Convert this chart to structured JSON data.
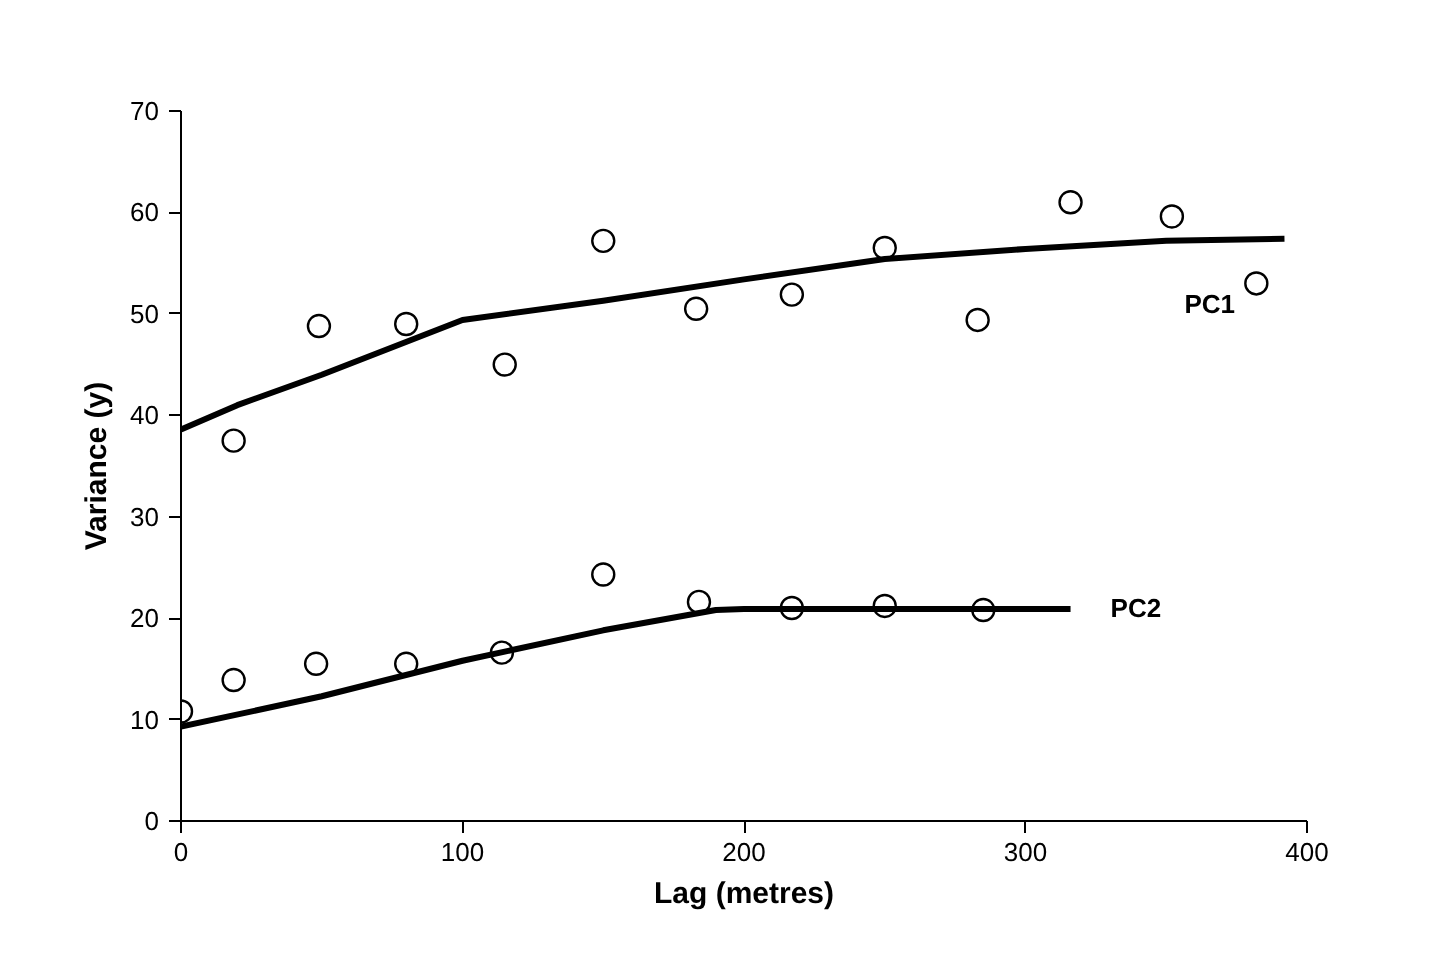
{
  "chart_data": {
    "type": "scatter",
    "xlabel": "Lag (metres)",
    "ylabel": "Variance (y)",
    "xlim": [
      0,
      400
    ],
    "xticks": [
      0,
      100,
      200,
      300,
      400
    ],
    "ylim": [
      0,
      70
    ],
    "yticks": [
      0,
      10,
      20,
      30,
      40,
      50,
      60,
      70
    ],
    "grid": false,
    "series": [
      {
        "marker": "circle",
        "color": "#000000",
        "x": [
          18.7,
          49,
          80,
          115,
          150,
          183,
          217,
          250,
          283,
          316,
          352,
          382
        ],
        "values": [
          37.5,
          48.8,
          49,
          45,
          57.2,
          50.5,
          51.9,
          56.5,
          49.4,
          61,
          59.6,
          53
        ]
      },
      {
        "type": "line",
        "name": "PC1",
        "marker": "none",
        "line_style": "solid",
        "color": "#000000",
        "x": [
          0,
          20,
          50,
          100,
          150,
          200,
          250,
          300,
          350,
          392
        ],
        "values": [
          38.6,
          41,
          44,
          49.4,
          51.3,
          53.4,
          55.4,
          56.4,
          57.2,
          57.4
        ]
      },
      {
        "marker": "circle",
        "color": "#000000",
        "x": [
          0,
          18.7,
          48,
          80,
          114,
          150,
          184,
          217,
          250,
          285
        ],
        "values": [
          10.8,
          13.9,
          15.5,
          15.5,
          16.6,
          24.3,
          21.6,
          21,
          21.2,
          20.8
        ]
      },
      {
        "type": "line",
        "name": "PC2",
        "marker": "none",
        "line_style": "solid",
        "color": "#000000",
        "x": [
          0,
          50,
          100,
          150,
          190,
          200,
          316
        ],
        "values": [
          9.3,
          12.3,
          15.8,
          18.8,
          20.8,
          20.9,
          20.9
        ]
      }
    ]
  }
}
